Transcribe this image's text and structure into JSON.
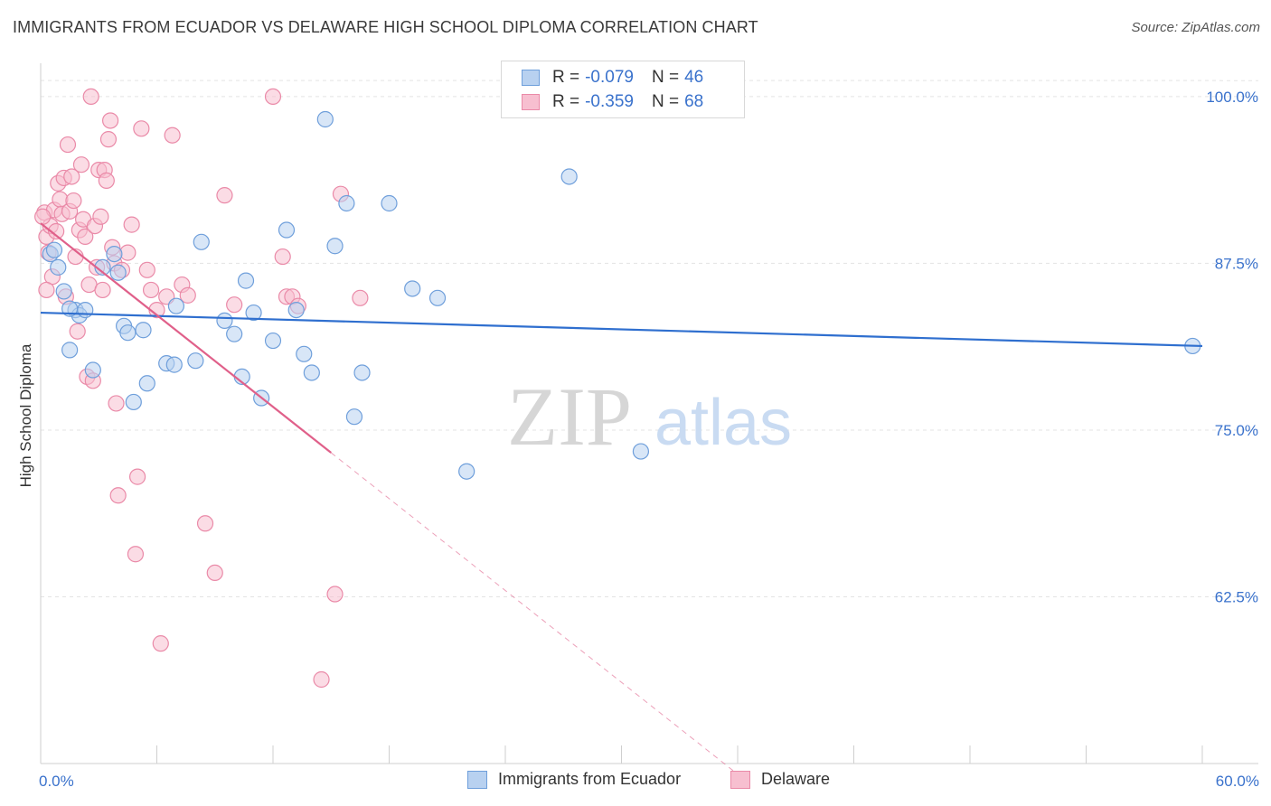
{
  "title": "IMMIGRANTS FROM ECUADOR VS DELAWARE HIGH SCHOOL DIPLOMA CORRELATION CHART",
  "source": "Source: ZipAtlas.com",
  "watermark": {
    "zip": "ZIP",
    "atlas": "atlas"
  },
  "legend": {
    "rows": [
      {
        "r_label": "R =",
        "r_value": "-0.079",
        "n_label": "N =",
        "n_value": "46"
      },
      {
        "r_label": "R =",
        "r_value": "-0.359",
        "n_label": "N =",
        "n_value": "68"
      }
    ]
  },
  "chart_data": {
    "type": "scatter",
    "title": "IMMIGRANTS FROM ECUADOR VS DELAWARE HIGH SCHOOL DIPLOMA CORRELATION CHART",
    "xlabel": "",
    "ylabel": "High School Diploma",
    "xlim": [
      0,
      60
    ],
    "ylim": [
      50,
      102.5
    ],
    "x_tick_labels": [
      "0.0%",
      "60.0%"
    ],
    "y_ticks": [
      62.5,
      75.0,
      87.5,
      100.0
    ],
    "y_tick_labels": [
      "62.5%",
      "75.0%",
      "87.5%",
      "100.0%"
    ],
    "legend_position": "bottom",
    "colors": {
      "blue_fill": "#b8d1f0",
      "blue_stroke": "#6f9fdb",
      "blue_line": "#2f6fcf",
      "pink_fill": "#f7bfd0",
      "pink_stroke": "#ea8aa8",
      "pink_line": "#e0608a",
      "axis_text": "#3a72cc"
    },
    "series": [
      {
        "name": "Immigrants from Ecuador",
        "color": "blue",
        "trend": {
          "x0": 0,
          "y0": 83.8,
          "x1": 60,
          "y1": 81.3
        },
        "points": [
          [
            0.5,
            88.2
          ],
          [
            0.7,
            88.5
          ],
          [
            0.9,
            87.2
          ],
          [
            1.2,
            85.4
          ],
          [
            1.5,
            81.0
          ],
          [
            1.8,
            84.0
          ],
          [
            2.0,
            83.6
          ],
          [
            2.3,
            84.0
          ],
          [
            2.7,
            79.5
          ],
          [
            3.2,
            87.2
          ],
          [
            3.8,
            88.2
          ],
          [
            4.0,
            86.8
          ],
          [
            4.3,
            82.8
          ],
          [
            4.5,
            82.3
          ],
          [
            4.8,
            77.1
          ],
          [
            5.3,
            82.5
          ],
          [
            5.5,
            78.5
          ],
          [
            6.5,
            80.0
          ],
          [
            7.0,
            84.3
          ],
          [
            8.0,
            80.2
          ],
          [
            8.3,
            89.1
          ],
          [
            9.5,
            83.2
          ],
          [
            10.0,
            82.2
          ],
          [
            10.4,
            79.0
          ],
          [
            10.6,
            86.2
          ],
          [
            11.0,
            83.8
          ],
          [
            11.4,
            77.4
          ],
          [
            12.0,
            81.7
          ],
          [
            12.7,
            90.0
          ],
          [
            13.2,
            84.0
          ],
          [
            13.6,
            80.7
          ],
          [
            14.0,
            79.3
          ],
          [
            14.7,
            98.3
          ],
          [
            15.2,
            88.8
          ],
          [
            15.8,
            92.0
          ],
          [
            16.2,
            76.0
          ],
          [
            16.6,
            79.3
          ],
          [
            18.0,
            92.0
          ],
          [
            19.2,
            85.6
          ],
          [
            20.5,
            84.9
          ],
          [
            22.0,
            71.9
          ],
          [
            27.3,
            94.0
          ],
          [
            31.0,
            73.4
          ],
          [
            59.5,
            81.3
          ],
          [
            6.9,
            79.9
          ],
          [
            1.5,
            84.1
          ]
        ]
      },
      {
        "name": "Delaware",
        "color": "pink",
        "trend": {
          "x0": 0,
          "y0": 90.5,
          "x1": 15,
          "y1": 73.3
        },
        "trend_dashed": {
          "x0": 15,
          "y0": 73.3,
          "x1": 36,
          "y1": 49.2
        },
        "points": [
          [
            0.2,
            91.3
          ],
          [
            0.3,
            89.5
          ],
          [
            0.4,
            88.3
          ],
          [
            0.5,
            90.3
          ],
          [
            0.6,
            86.5
          ],
          [
            0.7,
            91.5
          ],
          [
            0.8,
            89.9
          ],
          [
            0.9,
            93.5
          ],
          [
            1.0,
            92.3
          ],
          [
            1.1,
            91.2
          ],
          [
            1.2,
            93.9
          ],
          [
            1.3,
            85.0
          ],
          [
            1.4,
            96.4
          ],
          [
            1.5,
            91.4
          ],
          [
            1.6,
            94.0
          ],
          [
            1.7,
            92.2
          ],
          [
            1.8,
            88.0
          ],
          [
            1.9,
            82.4
          ],
          [
            2.0,
            90.0
          ],
          [
            2.1,
            94.9
          ],
          [
            2.2,
            90.8
          ],
          [
            2.3,
            89.5
          ],
          [
            2.4,
            79.0
          ],
          [
            2.5,
            85.9
          ],
          [
            2.6,
            100.0
          ],
          [
            2.7,
            78.7
          ],
          [
            2.8,
            90.3
          ],
          [
            2.9,
            87.2
          ],
          [
            3.0,
            94.5
          ],
          [
            3.1,
            91.0
          ],
          [
            3.2,
            85.5
          ],
          [
            3.3,
            94.5
          ],
          [
            3.4,
            93.7
          ],
          [
            3.5,
            96.8
          ],
          [
            3.6,
            98.2
          ],
          [
            3.7,
            88.7
          ],
          [
            3.8,
            87.5
          ],
          [
            3.9,
            77.0
          ],
          [
            4.0,
            70.1
          ],
          [
            4.2,
            87.0
          ],
          [
            4.5,
            88.3
          ],
          [
            4.7,
            90.4
          ],
          [
            4.9,
            65.7
          ],
          [
            5.0,
            71.5
          ],
          [
            5.2,
            97.6
          ],
          [
            5.5,
            87.0
          ],
          [
            5.7,
            85.5
          ],
          [
            6.0,
            84.0
          ],
          [
            6.2,
            59.0
          ],
          [
            6.5,
            85.0
          ],
          [
            6.8,
            97.1
          ],
          [
            7.3,
            85.9
          ],
          [
            7.6,
            85.1
          ],
          [
            8.5,
            68.0
          ],
          [
            9.0,
            64.3
          ],
          [
            9.5,
            92.6
          ],
          [
            10.0,
            84.4
          ],
          [
            12.5,
            88.0
          ],
          [
            12.7,
            85.0
          ],
          [
            13.0,
            85.0
          ],
          [
            13.3,
            84.3
          ],
          [
            14.5,
            56.3
          ],
          [
            15.2,
            62.7
          ],
          [
            15.5,
            92.7
          ],
          [
            16.5,
            84.9
          ],
          [
            12.0,
            100.0
          ],
          [
            0.1,
            91.0
          ],
          [
            0.3,
            85.5
          ]
        ]
      }
    ]
  }
}
